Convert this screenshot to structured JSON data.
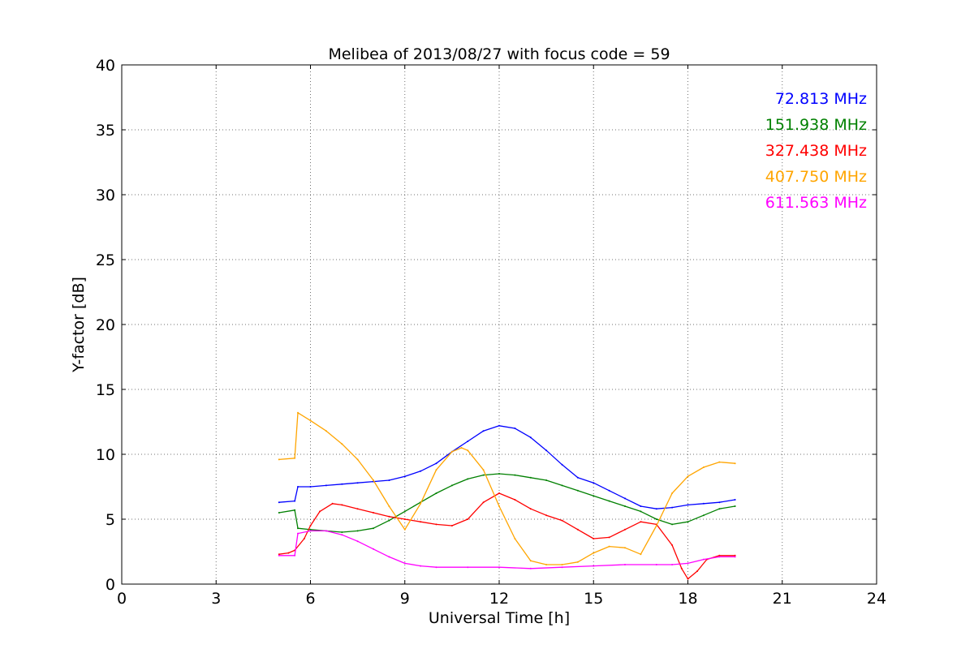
{
  "chart_data": {
    "type": "line",
    "title": "Melibea of 2013/08/27 with focus code = 59",
    "xlabel": "Universal Time [h]",
    "ylabel": "Y-factor [dB]",
    "xlim": [
      0,
      24
    ],
    "ylim": [
      0,
      40
    ],
    "xticks": [
      0,
      3,
      6,
      9,
      12,
      15,
      18,
      21,
      24
    ],
    "yticks": [
      0,
      5,
      10,
      15,
      20,
      25,
      30,
      35,
      40
    ],
    "grid": true,
    "legend_placement": "top-right",
    "series": [
      {
        "name": "72.813 MHz",
        "color": "#0000ff",
        "x": [
          5.0,
          5.5,
          5.6,
          6.0,
          6.5,
          7.0,
          7.5,
          8.0,
          8.5,
          9.0,
          9.5,
          10.0,
          10.5,
          11.0,
          11.5,
          12.0,
          12.5,
          13.0,
          13.5,
          14.0,
          14.5,
          15.0,
          15.5,
          16.0,
          16.5,
          17.0,
          17.5,
          18.0,
          18.5,
          19.0,
          19.5
        ],
        "y": [
          6.3,
          6.4,
          7.5,
          7.5,
          7.6,
          7.7,
          7.8,
          7.9,
          8.0,
          8.3,
          8.7,
          9.3,
          10.2,
          11.0,
          11.8,
          12.2,
          12.0,
          11.3,
          10.3,
          9.2,
          8.2,
          7.8,
          7.2,
          6.6,
          6.0,
          5.8,
          5.9,
          6.1,
          6.2,
          6.3,
          6.5
        ]
      },
      {
        "name": "151.938 MHz",
        "color": "#008000",
        "x": [
          5.0,
          5.5,
          5.6,
          6.0,
          6.5,
          7.0,
          7.5,
          8.0,
          8.5,
          9.0,
          9.5,
          10.0,
          10.5,
          11.0,
          11.5,
          12.0,
          12.5,
          13.0,
          13.5,
          14.0,
          14.5,
          15.0,
          15.5,
          16.0,
          16.5,
          17.0,
          17.5,
          18.0,
          18.5,
          19.0,
          19.5
        ],
        "y": [
          5.5,
          5.7,
          4.3,
          4.2,
          4.1,
          4.0,
          4.1,
          4.3,
          4.9,
          5.6,
          6.3,
          7.0,
          7.6,
          8.1,
          8.4,
          8.5,
          8.4,
          8.2,
          8.0,
          7.6,
          7.2,
          6.8,
          6.4,
          6.0,
          5.6,
          5.0,
          4.6,
          4.8,
          5.3,
          5.8,
          6.0
        ]
      },
      {
        "name": "327.438 MHz",
        "color": "#ff0000",
        "x": [
          5.0,
          5.3,
          5.5,
          5.8,
          6.0,
          6.3,
          6.7,
          7.0,
          7.5,
          8.0,
          8.5,
          9.0,
          9.5,
          10.0,
          10.5,
          11.0,
          11.5,
          12.0,
          12.5,
          13.0,
          13.5,
          14.0,
          14.5,
          15.0,
          15.5,
          16.0,
          16.5,
          17.0,
          17.5,
          17.8,
          18.0,
          18.3,
          18.6,
          19.0,
          19.5
        ],
        "y": [
          2.3,
          2.4,
          2.6,
          3.5,
          4.5,
          5.6,
          6.2,
          6.1,
          5.8,
          5.5,
          5.2,
          5.0,
          4.8,
          4.6,
          4.5,
          5.0,
          6.3,
          7.0,
          6.5,
          5.8,
          5.3,
          4.9,
          4.2,
          3.5,
          3.6,
          4.2,
          4.8,
          4.6,
          3.0,
          1.2,
          0.4,
          1.0,
          1.9,
          2.2,
          2.2
        ]
      },
      {
        "name": "407.750 MHz",
        "color": "#ffa500",
        "x": [
          5.0,
          5.5,
          5.6,
          6.0,
          6.5,
          7.0,
          7.5,
          8.0,
          8.5,
          9.0,
          9.5,
          10.0,
          10.5,
          10.8,
          11.0,
          11.5,
          12.0,
          12.5,
          13.0,
          13.5,
          14.0,
          14.5,
          15.0,
          15.5,
          16.0,
          16.5,
          17.0,
          17.5,
          18.0,
          18.5,
          19.0,
          19.5
        ],
        "y": [
          9.6,
          9.7,
          13.2,
          12.6,
          11.8,
          10.8,
          9.6,
          8.0,
          6.0,
          4.2,
          6.2,
          8.8,
          10.2,
          10.5,
          10.3,
          8.8,
          6.0,
          3.5,
          1.8,
          1.5,
          1.5,
          1.7,
          2.4,
          2.9,
          2.8,
          2.3,
          4.5,
          7.0,
          8.3,
          9.0,
          9.4,
          9.3
        ]
      },
      {
        "name": "611.563 MHz",
        "color": "#ff00ff",
        "x": [
          5.0,
          5.5,
          5.6,
          6.0,
          6.5,
          7.0,
          7.5,
          8.0,
          8.5,
          9.0,
          9.5,
          10.0,
          11.0,
          12.0,
          13.0,
          14.0,
          15.0,
          16.0,
          17.0,
          17.5,
          18.0,
          18.5,
          19.0,
          19.5
        ],
        "y": [
          2.2,
          2.2,
          3.9,
          4.1,
          4.1,
          3.8,
          3.3,
          2.7,
          2.1,
          1.6,
          1.4,
          1.3,
          1.3,
          1.3,
          1.2,
          1.3,
          1.4,
          1.5,
          1.5,
          1.5,
          1.6,
          1.9,
          2.1,
          2.1
        ]
      }
    ]
  }
}
